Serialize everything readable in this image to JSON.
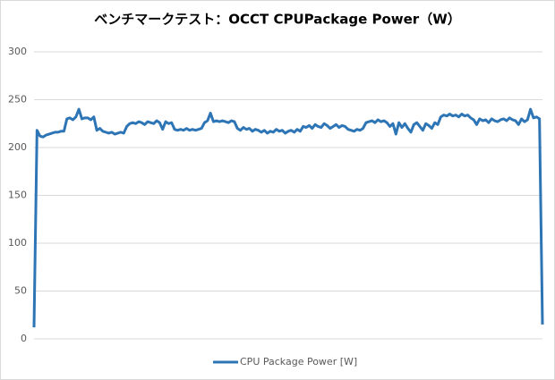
{
  "chart_data": {
    "type": "line",
    "title": "ベンチマークテスト：OCCT CPUPackage Power（W）",
    "series": [
      {
        "name": "CPU Package Power [W]",
        "color": "#2e75b6",
        "values": [
          12,
          218,
          212,
          211,
          213,
          214,
          215,
          216,
          216,
          217,
          217,
          230,
          231,
          229,
          232,
          240,
          230,
          231,
          231,
          229,
          232,
          218,
          220,
          217,
          216,
          215,
          216,
          214,
          215,
          216,
          215,
          222,
          225,
          226,
          225,
          227,
          226,
          224,
          227,
          226,
          225,
          228,
          226,
          219,
          227,
          225,
          226,
          219,
          218,
          219,
          218,
          220,
          218,
          219,
          218,
          219,
          220,
          226,
          228,
          236,
          227,
          228,
          227,
          228,
          227,
          226,
          228,
          227,
          220,
          218,
          221,
          219,
          220,
          217,
          219,
          218,
          216,
          218,
          215,
          217,
          216,
          219,
          217,
          218,
          215,
          217,
          218,
          216,
          219,
          217,
          222,
          221,
          223,
          220,
          224,
          222,
          221,
          225,
          223,
          220,
          222,
          224,
          221,
          223,
          222,
          219,
          218,
          217,
          219,
          218,
          220,
          226,
          227,
          228,
          226,
          229,
          227,
          228,
          226,
          222,
          225,
          214,
          226,
          221,
          225,
          220,
          216,
          224,
          226,
          222,
          218,
          225,
          223,
          220,
          226,
          224,
          232,
          234,
          233,
          235,
          233,
          234,
          232,
          235,
          233,
          234,
          231,
          229,
          224,
          230,
          228,
          229,
          226,
          230,
          228,
          227,
          229,
          230,
          228,
          231,
          229,
          228,
          224,
          230,
          227,
          229,
          240,
          231,
          232,
          230,
          15
        ]
      }
    ],
    "ylim": [
      0,
      300
    ],
    "yticks": [
      0,
      50,
      100,
      150,
      200,
      250,
      300
    ],
    "grid": true,
    "legend": "bottom"
  }
}
